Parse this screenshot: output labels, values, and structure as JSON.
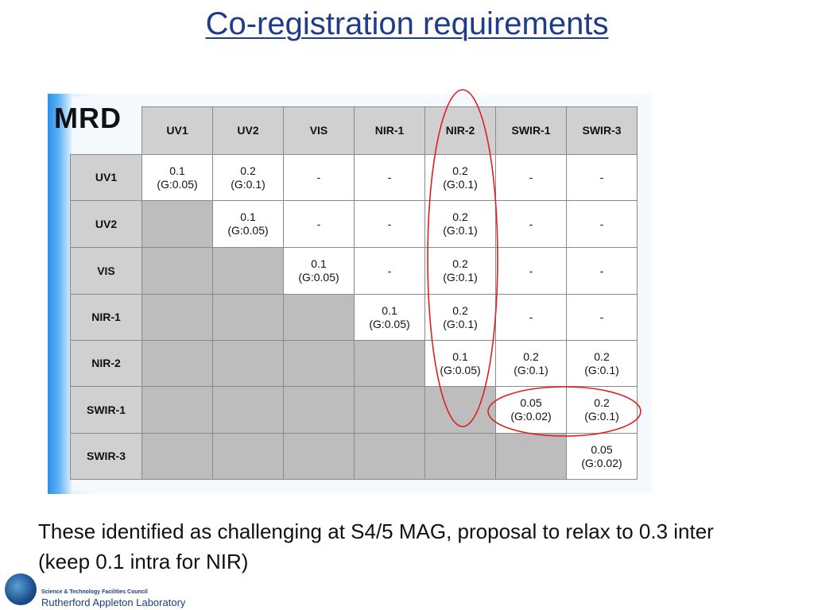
{
  "title": "Co-registration requirements",
  "panel": {
    "label": "MRD",
    "columns": [
      "UV1",
      "UV2",
      "VIS",
      "NIR-1",
      "NIR-2",
      "SWIR-1",
      "SWIR-3"
    ],
    "rows": [
      {
        "label": "UV1",
        "cells": [
          [
            "0.1",
            "(G:0.05)"
          ],
          [
            "0.2",
            "(G:0.1)"
          ],
          [
            "-",
            ""
          ],
          [
            "-",
            ""
          ],
          [
            "0.2",
            "(G:0.1)"
          ],
          [
            "-",
            ""
          ],
          [
            "-",
            ""
          ]
        ]
      },
      {
        "label": "UV2",
        "cells": [
          null,
          [
            "0.1",
            "(G:0.05)"
          ],
          [
            "-",
            ""
          ],
          [
            "-",
            ""
          ],
          [
            "0.2",
            "(G:0.1)"
          ],
          [
            "-",
            ""
          ],
          [
            "-",
            ""
          ]
        ]
      },
      {
        "label": "VIS",
        "cells": [
          null,
          null,
          [
            "0.1",
            "(G:0.05)"
          ],
          [
            "-",
            ""
          ],
          [
            "0.2",
            "(G:0.1)"
          ],
          [
            "-",
            ""
          ],
          [
            "-",
            ""
          ]
        ]
      },
      {
        "label": "NIR-1",
        "cells": [
          null,
          null,
          null,
          [
            "0.1",
            "(G:0.05)"
          ],
          [
            "0.2",
            "(G:0.1)"
          ],
          [
            "-",
            ""
          ],
          [
            "-",
            ""
          ]
        ]
      },
      {
        "label": "NIR-2",
        "cells": [
          null,
          null,
          null,
          null,
          [
            "0.1",
            "(G:0.05)"
          ],
          [
            "0.2",
            "(G:0.1)"
          ],
          [
            "0.2",
            "(G:0.1)"
          ]
        ]
      },
      {
        "label": "SWIR-1",
        "cells": [
          null,
          null,
          null,
          null,
          null,
          [
            "0.05",
            "(G:0.02)"
          ],
          [
            "0.2",
            "(G:0.1)"
          ]
        ]
      },
      {
        "label": "SWIR-3",
        "cells": [
          null,
          null,
          null,
          null,
          null,
          null,
          [
            "0.05",
            "(G:0.02)"
          ]
        ]
      }
    ]
  },
  "body_text": "These identified as challenging at S4/5 MAG, proposal to relax to 0.3 inter (keep 0.1 intra for NIR)",
  "logo": {
    "small_text": "Science & Technology Facilities Council",
    "big_text": "Rutherford Appleton Laboratory"
  },
  "colors": {
    "title": "#1f3c88",
    "annotation": "#e02020",
    "header_fill": "#d0d0d0",
    "shaded_fill": "#bdbdbd"
  }
}
